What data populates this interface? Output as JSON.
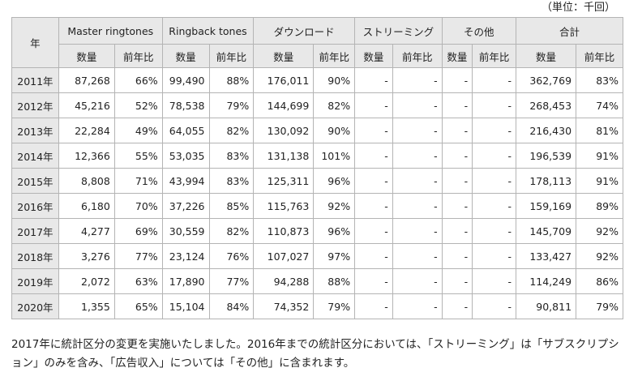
{
  "unit_label": "（単位：千回）",
  "table": {
    "year_header": "年",
    "groups": [
      "Master ringtones",
      "Ringback tones",
      "ダウンロード",
      "ストリーミング",
      "その他",
      "合計"
    ],
    "sub_headers": [
      "数量",
      "前年比",
      "数量",
      "前年比",
      "数量",
      "前年比",
      "数量",
      "前年比",
      "数量",
      "前年比",
      "数量",
      "前年比"
    ],
    "rows": [
      {
        "year": "2011年",
        "cells": [
          "87,268",
          "66%",
          "99,490",
          "88%",
          "176,011",
          "90%",
          "-",
          "-",
          "-",
          "-",
          "362,769",
          "83%"
        ]
      },
      {
        "year": "2012年",
        "cells": [
          "45,216",
          "52%",
          "78,538",
          "79%",
          "144,699",
          "82%",
          "-",
          "-",
          "-",
          "-",
          "268,453",
          "74%"
        ]
      },
      {
        "year": "2013年",
        "cells": [
          "22,284",
          "49%",
          "64,055",
          "82%",
          "130,092",
          "90%",
          "-",
          "-",
          "-",
          "-",
          "216,430",
          "81%"
        ]
      },
      {
        "year": "2014年",
        "cells": [
          "12,366",
          "55%",
          "53,035",
          "83%",
          "131,138",
          "101%",
          "-",
          "-",
          "-",
          "-",
          "196,539",
          "91%"
        ]
      },
      {
        "year": "2015年",
        "cells": [
          "8,808",
          "71%",
          "43,994",
          "83%",
          "125,311",
          "96%",
          "-",
          "-",
          "-",
          "-",
          "178,113",
          "91%"
        ]
      },
      {
        "year": "2016年",
        "cells": [
          "6,180",
          "70%",
          "37,226",
          "85%",
          "115,763",
          "92%",
          "-",
          "-",
          "-",
          "-",
          "159,169",
          "89%"
        ]
      },
      {
        "year": "2017年",
        "cells": [
          "4,277",
          "69%",
          "30,559",
          "82%",
          "110,873",
          "96%",
          "-",
          "-",
          "-",
          "-",
          "145,709",
          "92%"
        ]
      },
      {
        "year": "2018年",
        "cells": [
          "3,276",
          "77%",
          "23,124",
          "76%",
          "107,027",
          "97%",
          "-",
          "-",
          "-",
          "-",
          "133,427",
          "92%"
        ]
      },
      {
        "year": "2019年",
        "cells": [
          "2,072",
          "63%",
          "17,890",
          "77%",
          "94,288",
          "88%",
          "-",
          "-",
          "-",
          "-",
          "114,249",
          "86%"
        ]
      },
      {
        "year": "2020年",
        "cells": [
          "1,355",
          "65%",
          "15,104",
          "84%",
          "74,352",
          "79%",
          "-",
          "-",
          "-",
          "-",
          "90,811",
          "79%"
        ]
      }
    ]
  },
  "note": "2017年に統計区分の変更を実施いたしました。2016年までの統計区分においては、「ストリーミング」は「サブスクリプション」のみを含み、「広告収入」については「その他」に含まれます。"
}
